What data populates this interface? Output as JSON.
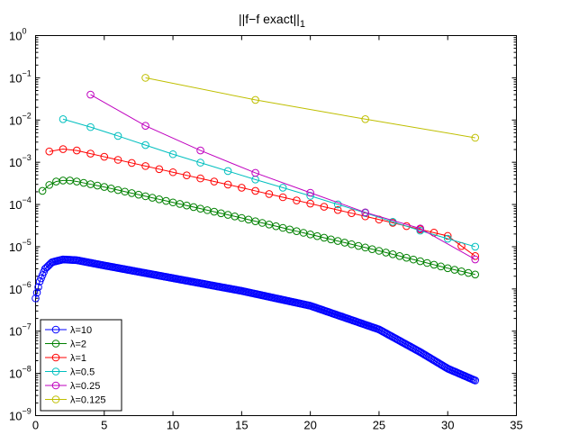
{
  "chart_data": {
    "type": "line",
    "title": "||f−f exact||",
    "title_subscript": "1",
    "xlabel": "",
    "ylabel": "",
    "xlim": [
      0,
      35
    ],
    "ylim": [
      1e-09,
      1
    ],
    "yscale": "log",
    "grid": false,
    "legend_position": "bottom-left",
    "x_ticks": [
      "0",
      "5",
      "10",
      "15",
      "20",
      "25",
      "30",
      "35"
    ],
    "y_ticks": [
      {
        "base": "10",
        "exp": "0"
      },
      {
        "base": "10",
        "exp": "−1"
      },
      {
        "base": "10",
        "exp": "−2"
      },
      {
        "base": "10",
        "exp": "−3"
      },
      {
        "base": "10",
        "exp": "−4"
      },
      {
        "base": "10",
        "exp": "−5"
      },
      {
        "base": "10",
        "exp": "−6"
      },
      {
        "base": "10",
        "exp": "−7"
      },
      {
        "base": "10",
        "exp": "−8"
      },
      {
        "base": "10",
        "exp": "−9"
      }
    ],
    "series": [
      {
        "name": "λ=10",
        "color": "#0000ff",
        "marker": "circle",
        "x_range": [
          0,
          32
        ],
        "x_step": 0.1,
        "anchors": [
          [
            0,
            6e-07
          ],
          [
            0.3,
            1.5e-06
          ],
          [
            0.7,
            3e-06
          ],
          [
            1.2,
            4.3e-06
          ],
          [
            2,
            5e-06
          ],
          [
            3,
            4.8e-06
          ],
          [
            5,
            3.6e-06
          ],
          [
            10,
            1.8e-06
          ],
          [
            15,
            9e-07
          ],
          [
            20,
            4e-07
          ],
          [
            25,
            1.1e-07
          ],
          [
            28,
            3.2e-08
          ],
          [
            30,
            1.3e-08
          ],
          [
            32,
            6.8e-09
          ]
        ]
      },
      {
        "name": "λ=2",
        "color": "#008000",
        "marker": "circle",
        "x_range": [
          0.5,
          32
        ],
        "x_step": 0.5,
        "anchors": [
          [
            0.5,
            0.00021
          ],
          [
            1,
            0.00029
          ],
          [
            1.5,
            0.00035
          ],
          [
            2,
            0.00037
          ],
          [
            2.5,
            0.00037
          ],
          [
            3,
            0.00035
          ],
          [
            5,
            0.00026
          ],
          [
            10,
            0.000112
          ],
          [
            15,
            4.8e-05
          ],
          [
            20,
            1.95e-05
          ],
          [
            25,
            8e-06
          ],
          [
            30,
            3.1e-06
          ],
          [
            32,
            2.2e-06
          ]
        ]
      },
      {
        "name": "λ=1",
        "color": "#ff0000",
        "marker": "circle",
        "x_range": [
          1,
          32
        ],
        "x_step": 1,
        "anchors": [
          [
            1,
            0.0018
          ],
          [
            2,
            0.00205
          ],
          [
            3,
            0.0019
          ],
          [
            5,
            0.00135
          ],
          [
            10,
            0.00058
          ],
          [
            15,
            0.00025
          ],
          [
            20,
            0.000105
          ],
          [
            25,
            4.4e-05
          ],
          [
            30,
            1.8e-05
          ],
          [
            32,
            6e-06
          ]
        ]
      },
      {
        "name": "λ=0.5",
        "color": "#00bfbf",
        "marker": "circle",
        "x_range": [
          2,
          32
        ],
        "x_step": 2,
        "anchors": [
          [
            2,
            0.0105
          ],
          [
            4,
            0.0068
          ],
          [
            6,
            0.0042
          ],
          [
            10,
            0.00155
          ],
          [
            16,
            0.00039
          ],
          [
            20,
            0.00016
          ],
          [
            24,
            6.3e-05
          ],
          [
            28,
            2.4e-05
          ],
          [
            32,
            1e-05
          ]
        ]
      },
      {
        "name": "λ=0.25",
        "color": "#bf00bf",
        "marker": "circle",
        "x_range": [
          4,
          32
        ],
        "x_step": 4,
        "anchors": [
          [
            4,
            0.04
          ],
          [
            8,
            0.0073
          ],
          [
            12,
            0.0019
          ],
          [
            16,
            0.00056
          ],
          [
            20,
            0.00019
          ],
          [
            24,
            6.5e-05
          ],
          [
            28,
            2.7e-05
          ],
          [
            32,
            5e-06
          ]
        ]
      },
      {
        "name": "λ=0.125",
        "color": "#bfbf00",
        "marker": "circle",
        "x_range": [
          8,
          32
        ],
        "x_step": 8,
        "anchors": [
          [
            8,
            0.1
          ],
          [
            16,
            0.03
          ],
          [
            24,
            0.0105
          ],
          [
            32,
            0.0038
          ]
        ]
      }
    ]
  }
}
